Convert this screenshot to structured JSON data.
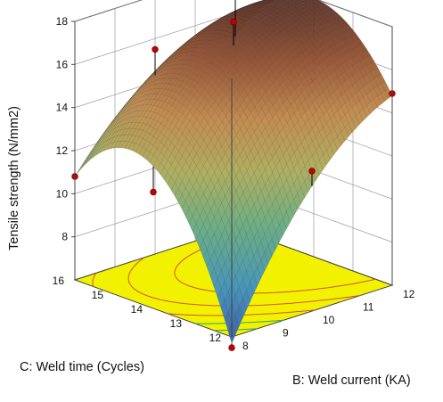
{
  "chart_data": {
    "type": "surface3d",
    "title": "",
    "xlabel": "B: Weld current (KA)",
    "ylabel": "C: Weld time (Cycles)",
    "zlabel": "Tensile strength (N/mm2)",
    "x_ticks": [
      "8",
      "9",
      "10",
      "11",
      "12"
    ],
    "y_ticks": [
      "12",
      "13",
      "14",
      "15",
      "16"
    ],
    "z_ticks": [
      "8",
      "10",
      "12",
      "14",
      "16",
      "18"
    ],
    "xlim": [
      8,
      12
    ],
    "ylim": [
      12,
      16
    ],
    "zlim": [
      6,
      18
    ],
    "surface_grid": {
      "x": [
        8,
        10,
        12
      ],
      "y": [
        12,
        14,
        16
      ],
      "z": [
        [
          5.7,
          12.6,
          10.8
        ],
        [
          11.8,
          17.0,
          14.3
        ],
        [
          14.8,
          18.0,
          14.9
        ]
      ],
      "z_index": "z[x_index][y_index]"
    },
    "design_points": [
      {
        "x": 8,
        "y": 12,
        "z": 5.5
      },
      {
        "x": 8,
        "y": 16,
        "z": 10.8
      },
      {
        "x": 12,
        "y": 12,
        "z": 14.9
      },
      {
        "x": 10,
        "y": 12,
        "z": 12.5
      },
      {
        "x": 8,
        "y": 14,
        "z": 11.4
      },
      {
        "x": 12,
        "y": 14,
        "z": 14.2
      },
      {
        "x": 10,
        "y": 16,
        "z": 15.5
      },
      {
        "x": 12,
        "y": 16,
        "z": 17.8
      },
      {
        "x": 10,
        "y": 14,
        "z": 18.1
      }
    ],
    "contour_levels": [
      8,
      10,
      12,
      14,
      16
    ],
    "floor_color": "#f2f200",
    "point_color": "#c40000",
    "grid": true
  }
}
